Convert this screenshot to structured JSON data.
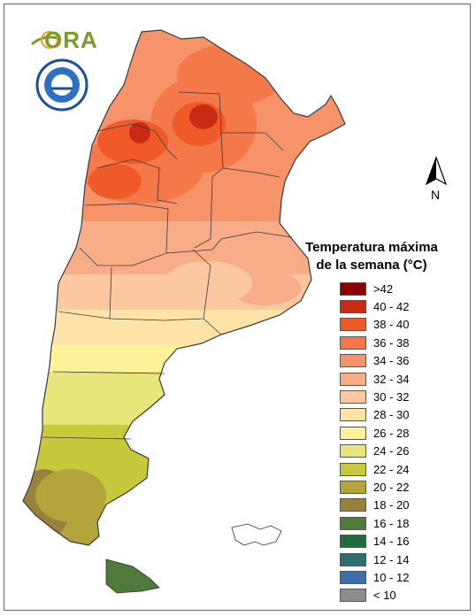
{
  "logo": {
    "text": "ORA",
    "seal_icon": "smn-argentina-seal-icon"
  },
  "north_arrow": {
    "label": "N",
    "icon": "north-arrow-icon"
  },
  "legend": {
    "title_line1": "Temperatura máxima",
    "title_line2": "de la semana (°C)",
    "items": [
      {
        "label": ">42",
        "color": "#8b0000"
      },
      {
        "label": "40 - 42",
        "color": "#c82a14"
      },
      {
        "label": "38 - 40",
        "color": "#f05a28"
      },
      {
        "label": "36 - 38",
        "color": "#f4784a"
      },
      {
        "label": "34 - 36",
        "color": "#f79368"
      },
      {
        "label": "32 - 34",
        "color": "#f9ad86"
      },
      {
        "label": "30 - 32",
        "color": "#fbc8a0"
      },
      {
        "label": "28 - 30",
        "color": "#fde3a7"
      },
      {
        "label": "26 - 28",
        "color": "#fdf29a"
      },
      {
        "label": "24 - 26",
        "color": "#e6e67a"
      },
      {
        "label": "22 - 24",
        "color": "#c8c83c"
      },
      {
        "label": "20 - 22",
        "color": "#b4a43c"
      },
      {
        "label": "18 - 20",
        "color": "#96823c"
      },
      {
        "label": "16 - 18",
        "color": "#4f7a3a"
      },
      {
        "label": "14 - 16",
        "color": "#1e6e3c"
      },
      {
        "label": "12 - 14",
        "color": "#2e6e6e"
      },
      {
        "label": "10 - 12",
        "color": "#3c6ea8"
      },
      {
        "label": "< 10",
        "color": "#8c8c8c"
      }
    ]
  }
}
